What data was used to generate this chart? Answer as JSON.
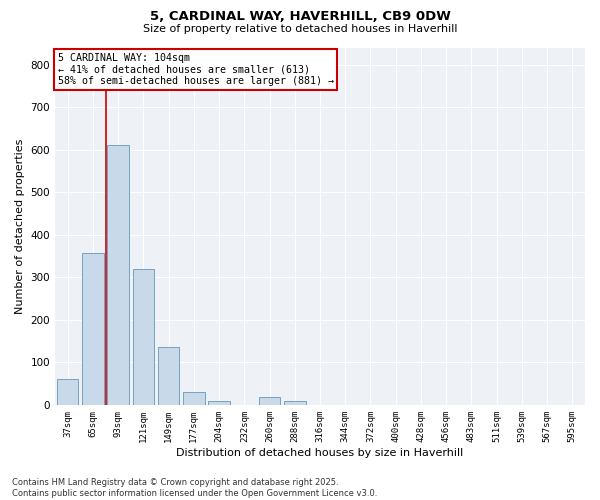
{
  "title1": "5, CARDINAL WAY, HAVERHILL, CB9 0DW",
  "title2": "Size of property relative to detached houses in Haverhill",
  "xlabel": "Distribution of detached houses by size in Haverhill",
  "ylabel": "Number of detached properties",
  "footer1": "Contains HM Land Registry data © Crown copyright and database right 2025.",
  "footer2": "Contains public sector information licensed under the Open Government Licence v3.0.",
  "annotation_title": "5 CARDINAL WAY: 104sqm",
  "annotation_line1": "← 41% of detached houses are smaller (613)",
  "annotation_line2": "58% of semi-detached houses are larger (881) →",
  "bar_color": "#c8d9ea",
  "bar_edge_color": "#6698b8",
  "vline_color": "#cc0000",
  "annotation_box_edgecolor": "#cc0000",
  "background_color": "#eef2f7",
  "grid_color": "#ffffff",
  "categories": [
    "37sqm",
    "65sqm",
    "93sqm",
    "121sqm",
    "149sqm",
    "177sqm",
    "204sqm",
    "232sqm",
    "260sqm",
    "288sqm",
    "316sqm",
    "344sqm",
    "372sqm",
    "400sqm",
    "428sqm",
    "456sqm",
    "483sqm",
    "511sqm",
    "539sqm",
    "567sqm",
    "595sqm"
  ],
  "values": [
    60,
    358,
    610,
    320,
    135,
    30,
    8,
    0,
    18,
    8,
    0,
    0,
    0,
    0,
    0,
    0,
    0,
    0,
    0,
    0,
    0
  ],
  "ylim": [
    0,
    840
  ],
  "yticks": [
    0,
    100,
    200,
    300,
    400,
    500,
    600,
    700,
    800
  ],
  "vline_x": 1.5,
  "figsize": [
    6.0,
    5.0
  ],
  "dpi": 100
}
